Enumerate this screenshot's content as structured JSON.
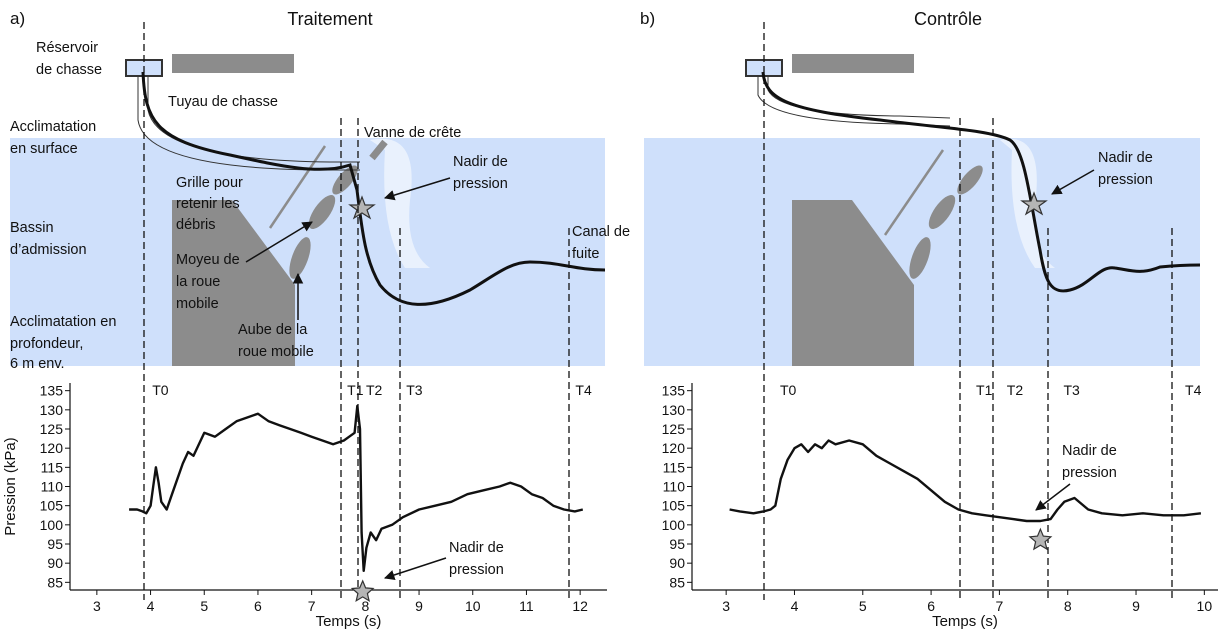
{
  "panel_a": {
    "letter": "a)",
    "title": "Traitement",
    "labels": {
      "reservoir": [
        "Réservoir",
        "de chasse"
      ],
      "tuyau": "Tuyau de chasse",
      "acclim_surface": [
        "Acclimatation",
        "en surface"
      ],
      "vanne": "Vanne de crête",
      "nadir_top": [
        "Nadir de",
        "pression"
      ],
      "grille": [
        "Grille pour",
        "retenir les",
        "débris"
      ],
      "bassin": [
        "Bassin",
        "d’admission"
      ],
      "canal": [
        "Canal de",
        "fuite"
      ],
      "moyeu": [
        "Moyeu de",
        "la roue",
        "mobile"
      ],
      "acclim_prof": [
        "Acclimatation en",
        "profondeur,",
        "6 m env."
      ],
      "aube": [
        "Aube de la",
        "roue mobile"
      ],
      "nadir_bottom": [
        "Nadir de",
        "pression"
      ]
    }
  },
  "panel_b": {
    "letter": "b)",
    "title": "Contrôle",
    "labels": {
      "nadir_top": [
        "Nadir de",
        "pression"
      ],
      "nadir_bottom": [
        "Nadir de",
        "pression"
      ]
    }
  },
  "colors": {
    "water": "#cfe0fb",
    "turbine": "#8c8c8c",
    "line": "#111111",
    "star": "#b5b5b5"
  },
  "chart_data": [
    {
      "type": "line",
      "panel": "a",
      "xlabel": "Temps (s)",
      "ylabel": "Pression (kPa)",
      "xlim": [
        2.5,
        12.5
      ],
      "ylim": [
        83,
        137
      ],
      "xticks": [
        3,
        4,
        5,
        6,
        7,
        8,
        9,
        10,
        11,
        12
      ],
      "yticks": [
        85,
        90,
        95,
        100,
        105,
        110,
        115,
        120,
        125,
        130,
        135
      ],
      "events": [
        {
          "label": "T0",
          "x": 3.92
        },
        {
          "label": "T1",
          "x": 7.55
        },
        {
          "label": "T2",
          "x": 7.9
        },
        {
          "label": "T3",
          "x": 8.65
        },
        {
          "label": "T4",
          "x": 11.8
        }
      ],
      "nadir": {
        "x": 7.95,
        "y": 82.5
      },
      "series": [
        {
          "x": [
            3.6,
            3.75,
            3.85,
            3.92,
            4.0,
            4.05,
            4.1,
            4.15,
            4.2,
            4.3,
            4.4,
            4.5,
            4.6,
            4.7,
            4.8,
            4.9,
            5.0,
            5.2,
            5.4,
            5.6,
            5.8,
            6.0,
            6.2,
            6.4,
            6.6,
            6.8,
            7.0,
            7.2,
            7.4,
            7.5,
            7.6,
            7.7,
            7.8,
            7.85,
            7.9,
            7.93,
            7.97,
            8.02,
            8.1,
            8.2,
            8.3,
            8.5,
            8.7,
            9.0,
            9.3,
            9.6,
            9.9,
            10.2,
            10.5,
            10.7,
            10.9,
            11.1,
            11.3,
            11.5,
            11.7,
            11.9,
            12.05
          ],
          "y": [
            104,
            104,
            103.5,
            103,
            105,
            110,
            115,
            111,
            106,
            104,
            108,
            112,
            116,
            119,
            118,
            121,
            124,
            123,
            125,
            127,
            128,
            129,
            127,
            126,
            125,
            124,
            123,
            122,
            121,
            121.5,
            122,
            123,
            124,
            131,
            125,
            98,
            88,
            94,
            98,
            96,
            99,
            100,
            102,
            104,
            105,
            106,
            108,
            109,
            110,
            111,
            110,
            108,
            107,
            105,
            104,
            103.5,
            104
          ]
        }
      ]
    },
    {
      "type": "line",
      "panel": "b",
      "xlabel": "Temps (s)",
      "ylabel": "",
      "xlim": [
        2.5,
        10.2
      ],
      "ylim": [
        83,
        137
      ],
      "xticks": [
        3,
        4,
        5,
        6,
        7,
        8,
        9,
        10
      ],
      "yticks": [
        85,
        90,
        95,
        100,
        105,
        110,
        115,
        120,
        125,
        130,
        135
      ],
      "events": [
        {
          "label": "T0",
          "x": 3.7
        },
        {
          "label": "T1",
          "x": 6.57
        },
        {
          "label": "T2",
          "x": 7.02
        },
        {
          "label": "T3",
          "x": 7.85
        },
        {
          "label": "T4",
          "x": 9.63
        }
      ],
      "nadir": {
        "x": 7.6,
        "y": 96
      },
      "series": [
        {
          "x": [
            3.05,
            3.2,
            3.4,
            3.55,
            3.65,
            3.72,
            3.8,
            3.9,
            4.0,
            4.1,
            4.2,
            4.3,
            4.4,
            4.5,
            4.6,
            4.8,
            5.0,
            5.2,
            5.4,
            5.6,
            5.8,
            6.0,
            6.2,
            6.4,
            6.6,
            6.8,
            7.0,
            7.2,
            7.4,
            7.6,
            7.75,
            7.85,
            7.95,
            8.1,
            8.3,
            8.5,
            8.8,
            9.1,
            9.4,
            9.7,
            9.95
          ],
          "y": [
            104,
            103.5,
            103,
            103.5,
            104,
            105,
            112,
            117,
            120,
            121,
            119,
            121,
            120,
            122,
            121,
            122,
            121,
            118,
            116,
            114,
            112,
            109,
            106,
            104,
            103,
            102.5,
            102,
            101.5,
            101,
            101,
            101.5,
            104,
            106,
            107,
            104,
            103,
            102.5,
            103,
            102.5,
            102.5,
            103
          ]
        }
      ]
    }
  ]
}
